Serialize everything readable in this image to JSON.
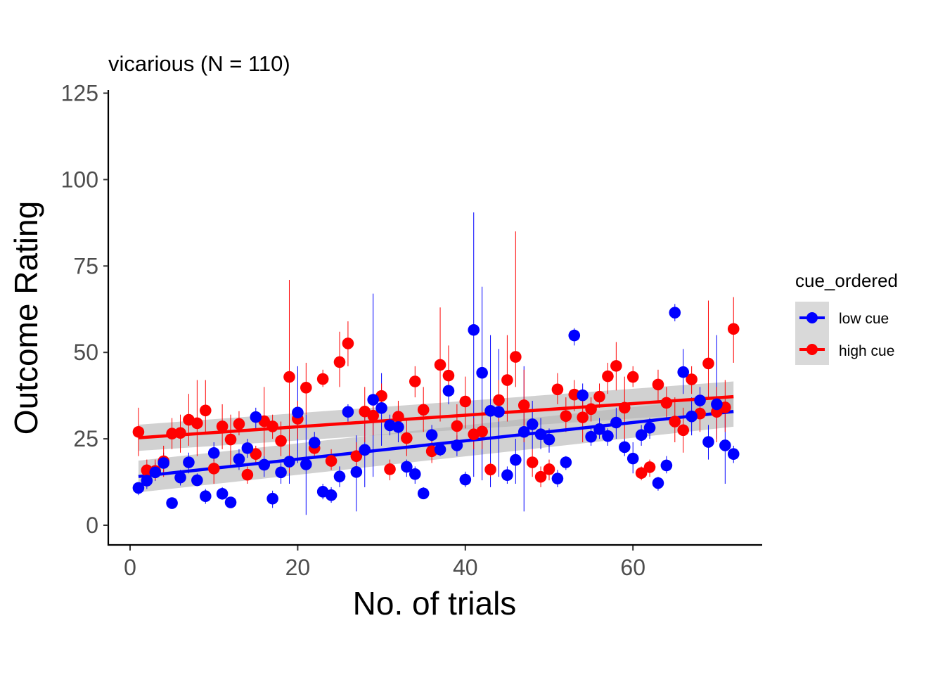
{
  "chart_data": {
    "type": "scatter",
    "title": "vicarious (N = 110)",
    "xlabel": "No. of trials",
    "ylabel": "Outcome Rating",
    "xlim": [
      -3,
      76
    ],
    "ylim": [
      -6,
      126
    ],
    "x_ticks": [
      0,
      20,
      40,
      60
    ],
    "y_ticks": [
      0,
      25,
      50,
      75,
      100,
      125
    ],
    "x_tick_labels": [
      "0",
      "20",
      "40",
      "60"
    ],
    "y_tick_labels": [
      "0",
      "25",
      "50",
      "75",
      "100",
      "125"
    ],
    "grid": false,
    "legend": {
      "title": "cue_ordered",
      "position": "right"
    },
    "series": [
      {
        "name": "low cue",
        "color": "#0000FF",
        "x": [
          1,
          2,
          3,
          4,
          5,
          6,
          7,
          8,
          9,
          10,
          11,
          12,
          13,
          14,
          15,
          16,
          17,
          18,
          19,
          20,
          21,
          22,
          23,
          24,
          25,
          26,
          27,
          28,
          29,
          30,
          31,
          32,
          33,
          34,
          35,
          36,
          37,
          38,
          39,
          40,
          41,
          42,
          43,
          44,
          45,
          46,
          47,
          48,
          49,
          50,
          51,
          52,
          53,
          54,
          55,
          56,
          57,
          58,
          59,
          60,
          61,
          62,
          63,
          64,
          65,
          66,
          67,
          68,
          69,
          70,
          71,
          72
        ],
        "y": [
          10.8,
          12.9,
          15.3,
          18,
          6.4,
          13.8,
          18.2,
          13,
          8.4,
          20.9,
          9.1,
          6.6,
          19.1,
          22.3,
          31.3,
          17.5,
          7.7,
          15.3,
          18.4,
          32.6,
          17.6,
          23.9,
          9.7,
          8.7,
          14.1,
          32.8,
          15.4,
          21.8,
          36.3,
          33.9,
          28.9,
          28.4,
          16.9,
          14.8,
          9.2,
          26.1,
          21.9,
          38.9,
          23.1,
          13.2,
          56.5,
          44.1,
          33.1,
          32.8,
          14.5,
          18.9,
          27,
          29.2,
          26.3,
          24.8,
          13.5,
          18.2,
          54.9,
          37.6,
          25.6,
          27.8,
          25.8,
          29.7,
          22.6,
          19.3,
          26.1,
          28.2,
          12.2,
          17.3,
          61.5,
          44.3,
          31.5,
          36.1,
          24.1,
          35,
          23.1,
          20.6
        ],
        "err_low": [
          8.7,
          10.5,
          12.8,
          15.5,
          5.2,
          11.5,
          15,
          11.3,
          6.2,
          18.5,
          7.5,
          5.5,
          16,
          19.5,
          28,
          14,
          5,
          12,
          12,
          18,
          3,
          21,
          7.5,
          6.5,
          11,
          30,
          4,
          11,
          14,
          23,
          26,
          24,
          14,
          12,
          8,
          23,
          20,
          35,
          20,
          11,
          14,
          13,
          11,
          14,
          12,
          12,
          4,
          22,
          22,
          21,
          11,
          16,
          52,
          34,
          23,
          25,
          23,
          25,
          20,
          15,
          23,
          25,
          10,
          15,
          59,
          38,
          26,
          32,
          19,
          25,
          12,
          18
        ],
        "err_high": [
          12,
          15,
          18,
          21,
          7.5,
          16,
          21,
          15,
          10.5,
          24,
          11,
          8,
          22,
          25,
          34,
          20,
          10,
          18,
          26,
          46,
          32,
          27,
          12,
          11,
          17,
          35,
          26,
          33,
          67,
          44,
          32,
          33,
          19,
          17,
          11,
          29,
          24,
          43,
          26,
          15.5,
          90.5,
          69,
          55,
          51,
          17,
          25,
          46,
          36,
          31,
          28,
          16,
          20,
          57,
          41,
          28,
          31,
          28,
          34,
          25,
          24,
          29,
          31,
          14,
          20,
          64,
          51,
          37,
          40,
          29,
          55,
          33,
          23
        ],
        "trend": {
          "x": [
            1,
            72
          ],
          "y": [
            14.1,
            32.9
          ],
          "ci_low_start": 9.5,
          "ci_high_start": 18.7,
          "ci_low_end": 28.5,
          "ci_high_end": 37.3
        }
      },
      {
        "name": "high cue",
        "color": "#FF0000",
        "x": [
          1,
          2,
          3,
          4,
          5,
          6,
          7,
          8,
          9,
          10,
          11,
          12,
          13,
          14,
          15,
          16,
          17,
          18,
          19,
          20,
          21,
          22,
          23,
          24,
          25,
          26,
          27,
          28,
          29,
          30,
          31,
          32,
          33,
          34,
          35,
          36,
          37,
          38,
          39,
          40,
          41,
          42,
          43,
          44,
          45,
          46,
          47,
          48,
          49,
          50,
          51,
          52,
          53,
          54,
          55,
          56,
          57,
          58,
          59,
          60,
          61,
          62,
          63,
          64,
          65,
          66,
          67,
          68,
          69,
          70,
          71,
          72
        ],
        "y": [
          27,
          15.9,
          15.7,
          18.5,
          26.5,
          26.7,
          30.5,
          29.5,
          33.2,
          16.4,
          28.6,
          24.8,
          29.3,
          14.6,
          20.6,
          30.1,
          28.6,
          24.4,
          42.9,
          30.8,
          39.8,
          22.3,
          42.3,
          18.6,
          47.2,
          52.6,
          20,
          32.9,
          31.7,
          37.4,
          16.2,
          31.4,
          25.2,
          41.6,
          33.4,
          21.4,
          46.4,
          43.3,
          28.7,
          35.8,
          26.3,
          27.1,
          16.1,
          36.2,
          42,
          48.7,
          34.7,
          18.2,
          14,
          16.2,
          39.3,
          31.6,
          37.8,
          31.2,
          33.6,
          37.2,
          43.1,
          46.1,
          34,
          42.9,
          15.1,
          16.8,
          40.7,
          35.4,
          30,
          27.5,
          42.2,
          32.3,
          46.8,
          32.8,
          34.1,
          56.8
        ],
        "err_low": [
          20,
          13,
          13,
          14,
          22,
          21,
          23,
          20,
          27,
          12,
          22,
          17,
          26,
          12,
          18,
          20,
          25,
          20,
          15,
          25,
          32,
          20,
          40,
          16,
          40,
          46,
          16,
          24,
          26,
          34,
          13,
          27,
          20,
          37,
          27,
          18,
          30,
          38,
          22,
          28,
          22,
          22,
          14,
          30,
          30,
          40,
          24,
          14,
          11,
          13,
          35,
          27,
          33,
          24,
          30,
          34,
          38,
          39,
          25,
          40,
          13,
          14,
          36,
          31,
          24,
          21,
          38,
          27,
          37,
          24,
          27,
          47
        ],
        "err_high": [
          34,
          19,
          19,
          23,
          31,
          32,
          38,
          42,
          42,
          20,
          35,
          32,
          33,
          17,
          23,
          40,
          32,
          30,
          71,
          36,
          47,
          25,
          45,
          22,
          56,
          59,
          24,
          40,
          37,
          41,
          19,
          36,
          31,
          46,
          40,
          25,
          63,
          52,
          35,
          43,
          31,
          33,
          18,
          42,
          55,
          85,
          45,
          22,
          17,
          19,
          44,
          37,
          42,
          38,
          37,
          41,
          47,
          53,
          43,
          46,
          17,
          19,
          45,
          40,
          37,
          34,
          46,
          38,
          65,
          40,
          42,
          66
        ],
        "trend": {
          "x": [
            1,
            72
          ],
          "y": [
            25.3,
            37.2
          ],
          "ci_low_start": 21.5,
          "ci_high_start": 29.1,
          "ci_low_end": 32.8,
          "ci_high_end": 41.6
        }
      }
    ]
  }
}
